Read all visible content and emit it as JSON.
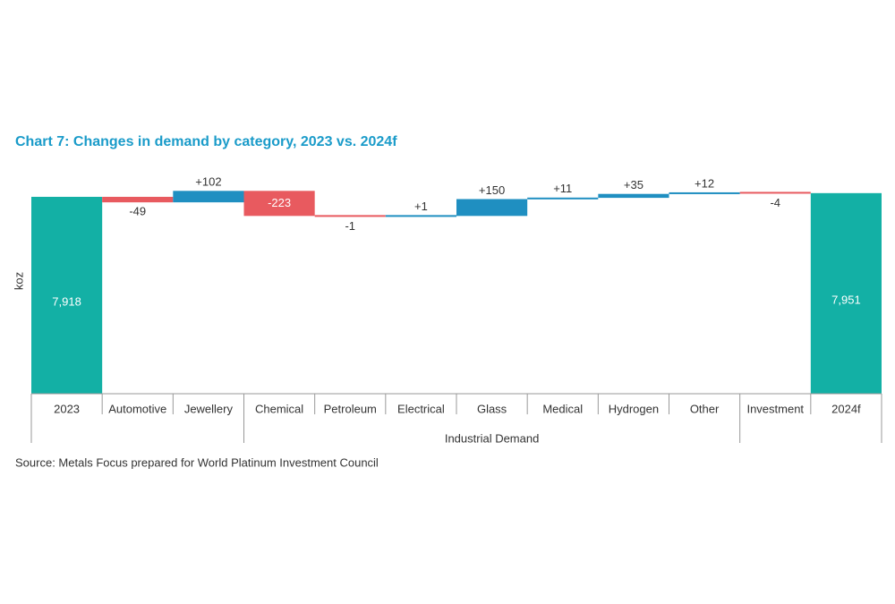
{
  "chart_data": {
    "type": "waterfall",
    "title": "Chart 7: Changes in demand by category, 2023 vs. 2024f",
    "y_label": "koz",
    "source": "Source: Metals Focus prepared for World Platinum Investment Council",
    "categories": [
      "2023",
      "Automotive",
      "Jewellery",
      "Chemical",
      "Petroleum",
      "Electrical",
      "Glass",
      "Medical",
      "Hydrogen",
      "Other",
      "Investment",
      "2024f"
    ],
    "category_groups": [
      null,
      null,
      null,
      "Industrial Demand",
      "Industrial Demand",
      "Industrial Demand",
      "Industrial Demand",
      "Industrial Demand",
      "Industrial Demand",
      "Industrial Demand",
      null,
      null
    ],
    "measures": [
      "total",
      "relative",
      "relative",
      "relative",
      "relative",
      "relative",
      "relative",
      "relative",
      "relative",
      "relative",
      "relative",
      "total"
    ],
    "values": [
      7918,
      -49,
      102,
      -223,
      -1,
      1,
      150,
      11,
      35,
      12,
      -4,
      7951
    ],
    "value_labels": [
      "7,918",
      "-49",
      "+102",
      "-223",
      "-1",
      "+1",
      "+150",
      "+11",
      "+35",
      "+12",
      "-4",
      "7,951"
    ],
    "colors": {
      "total": "#13b0a5",
      "increase": "#1f8fc1",
      "decrease": "#e85a5f"
    },
    "ylim": [
      6166,
      8077
    ]
  }
}
